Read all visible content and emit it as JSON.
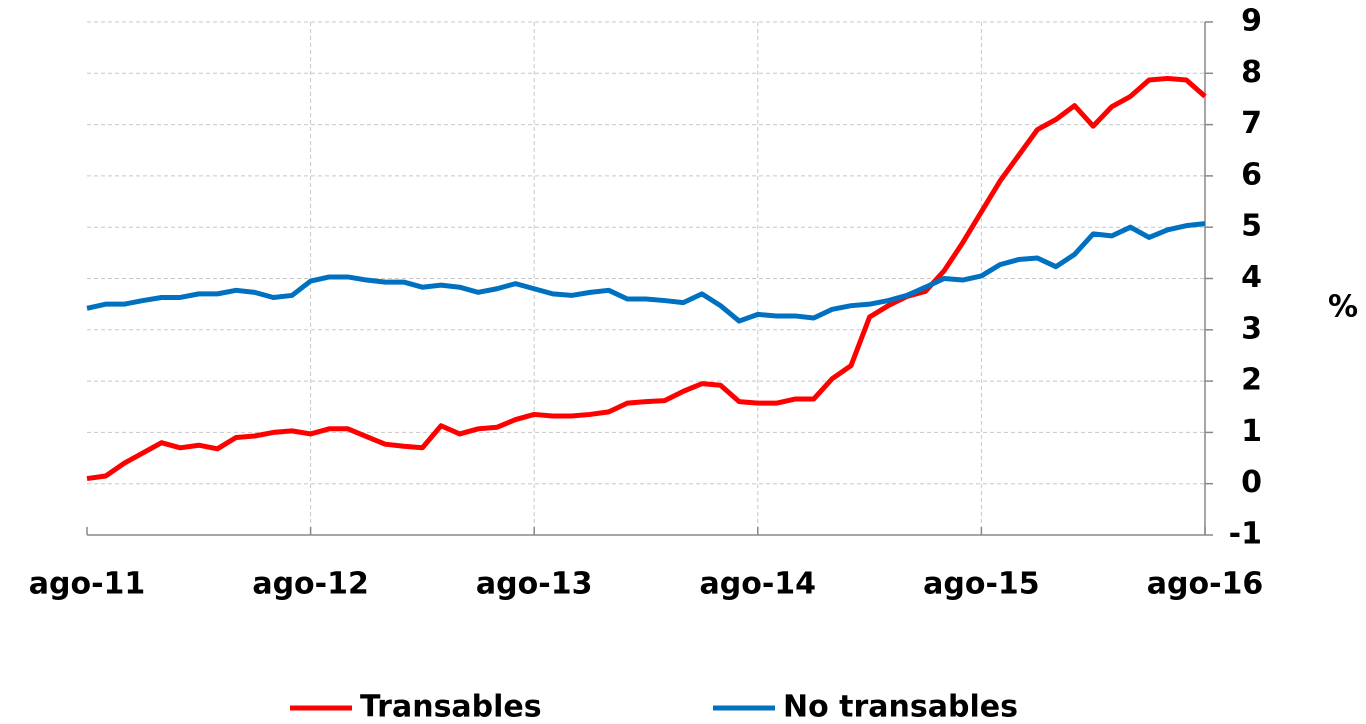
{
  "chart_data": {
    "type": "line",
    "categories": [
      "ago-11",
      null,
      null,
      null,
      null,
      null,
      null,
      null,
      null,
      null,
      null,
      null,
      "ago-12",
      null,
      null,
      null,
      null,
      null,
      null,
      null,
      null,
      null,
      null,
      null,
      "ago-13",
      null,
      null,
      null,
      null,
      null,
      null,
      null,
      null,
      null,
      null,
      null,
      "ago-14",
      null,
      null,
      null,
      null,
      null,
      null,
      null,
      null,
      null,
      null,
      null,
      "ago-15",
      null,
      null,
      null,
      null,
      null,
      null,
      null,
      null,
      null,
      null,
      null,
      "ago-16"
    ],
    "series": [
      {
        "name": "Transables",
        "color": "#ff0000",
        "values": [
          0.1,
          0.15,
          0.4,
          0.6,
          0.8,
          0.7,
          0.75,
          0.68,
          0.9,
          0.93,
          1.0,
          1.03,
          0.97,
          1.07,
          1.07,
          0.92,
          0.77,
          0.73,
          0.7,
          1.13,
          0.97,
          1.07,
          1.1,
          1.25,
          1.35,
          1.32,
          1.32,
          1.35,
          1.4,
          1.57,
          1.6,
          1.62,
          1.8,
          1.95,
          1.92,
          1.6,
          1.57,
          1.57,
          1.65,
          1.65,
          2.05,
          2.3,
          3.25,
          3.47,
          3.65,
          3.75,
          4.15,
          4.7,
          5.3,
          5.9,
          6.4,
          6.9,
          7.1,
          7.37,
          6.97,
          7.35,
          7.55,
          7.87,
          7.9,
          7.87,
          7.55
        ]
      },
      {
        "name": "No transables",
        "color": "#0070c0",
        "values": [
          3.42,
          3.5,
          3.5,
          3.57,
          3.63,
          3.63,
          3.7,
          3.7,
          3.77,
          3.73,
          3.63,
          3.67,
          3.95,
          4.03,
          4.03,
          3.97,
          3.93,
          3.93,
          3.83,
          3.87,
          3.83,
          3.73,
          3.8,
          3.9,
          3.8,
          3.7,
          3.67,
          3.73,
          3.77,
          3.6,
          3.6,
          3.57,
          3.53,
          3.7,
          3.47,
          3.17,
          3.3,
          3.27,
          3.27,
          3.23,
          3.4,
          3.47,
          3.5,
          3.57,
          3.67,
          3.83,
          4.0,
          3.97,
          4.05,
          4.27,
          4.37,
          4.4,
          4.23,
          4.47,
          4.87,
          4.83,
          5.0,
          4.8,
          4.95,
          5.03,
          5.07
        ]
      }
    ],
    "y_label": "%",
    "ylim": [
      -1,
      9
    ],
    "yticks": [
      -1,
      0,
      1,
      2,
      3,
      4,
      5,
      6,
      7,
      8,
      9
    ],
    "grid": true,
    "legend": "bottom"
  }
}
